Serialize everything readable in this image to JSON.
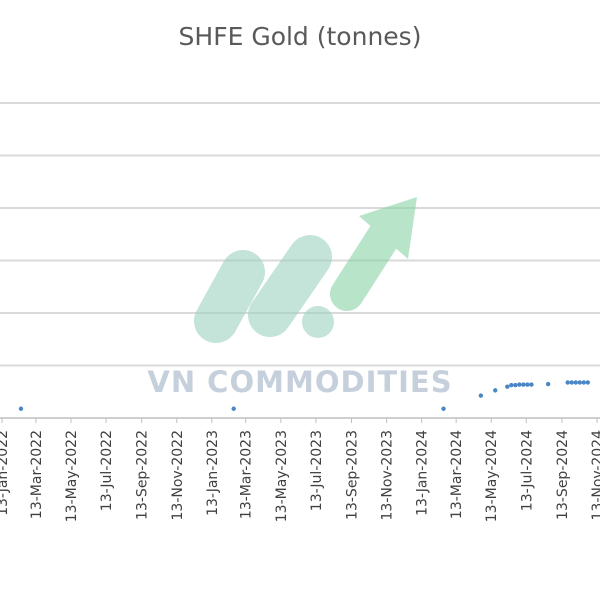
{
  "chart_data": {
    "type": "scatter",
    "title": "SHFE Gold (tonnes)",
    "xlabel": "",
    "ylabel": "",
    "grid": true,
    "legend": "none",
    "x_axis": {
      "type": "date",
      "range": [
        "2022-01-13",
        "2024-11-13"
      ],
      "tick_labels": [
        "13-Jan-2022",
        "13-Mar-2022",
        "13-May-2022",
        "13-Jul-2022",
        "13-Sep-2022",
        "13-Nov-2022",
        "13-Jan-2023",
        "13-Mar-2023",
        "13-May-2023",
        "13-Jul-2023",
        "13-Sep-2023",
        "13-Nov-2023",
        "13-Jan-2024",
        "13-Mar-2024",
        "13-May-2024",
        "13-Jul-2024",
        "13-Sep-2024",
        "13-Nov-2024"
      ]
    },
    "y_axis": {
      "range": [
        0,
        6
      ],
      "gridlines": [
        1,
        2,
        3,
        4,
        5,
        6
      ]
    },
    "series": [
      {
        "color": "#4a86c5",
        "points": [
          {
            "x": "2022-02-15",
            "y": 0.1
          },
          {
            "x": "2023-02-20",
            "y": 0.1
          },
          {
            "x": "2024-02-20",
            "y": 0.1
          },
          {
            "x": "2024-04-25",
            "y": 0.35
          },
          {
            "x": "2024-05-20",
            "y": 0.45
          },
          {
            "x": "2024-06-10",
            "y": 0.52
          },
          {
            "x": "2024-06-17",
            "y": 0.55
          },
          {
            "x": "2024-06-24",
            "y": 0.55
          },
          {
            "x": "2024-07-01",
            "y": 0.56
          },
          {
            "x": "2024-07-08",
            "y": 0.56
          },
          {
            "x": "2024-07-15",
            "y": 0.56
          },
          {
            "x": "2024-07-22",
            "y": 0.56
          },
          {
            "x": "2024-08-20",
            "y": 0.57
          },
          {
            "x": "2024-09-23",
            "y": 0.6
          },
          {
            "x": "2024-09-30",
            "y": 0.6
          },
          {
            "x": "2024-10-07",
            "y": 0.6
          },
          {
            "x": "2024-10-14",
            "y": 0.6
          },
          {
            "x": "2024-10-21",
            "y": 0.6
          },
          {
            "x": "2024-10-28",
            "y": 0.6
          }
        ]
      }
    ]
  },
  "watermark": {
    "text": "VN COMMODITIES"
  },
  "colors": {
    "logo_green": "#8ad3a7",
    "logo_teal": "#9ed1c1"
  }
}
